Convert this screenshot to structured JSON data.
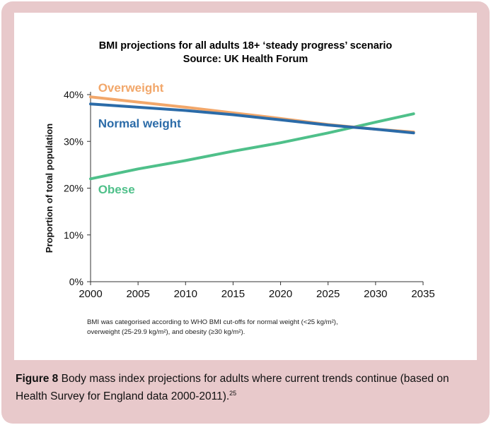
{
  "chart_data": {
    "type": "line",
    "title": "BMI projections for all adults 18+ ‘steady progress’ scenario",
    "subtitle": "Source: UK Health Forum",
    "xlabel": "",
    "ylabel": "Proportion of total population",
    "xlim": [
      2000,
      2035
    ],
    "ylim": [
      0,
      40
    ],
    "x_ticks": [
      "2000",
      "2005",
      "2010",
      "2015",
      "2020",
      "2025",
      "2030",
      "2035"
    ],
    "y_ticks": [
      "0%",
      "10%",
      "20%",
      "30%",
      "40%"
    ],
    "grid": false,
    "series": [
      {
        "name": "Overweight",
        "color": "#f2a76a",
        "x": [
          2000,
          2005,
          2010,
          2015,
          2020,
          2025,
          2030,
          2034
        ],
        "values": [
          39.5,
          38.4,
          37.3,
          36.1,
          34.9,
          33.6,
          32.6,
          32.0
        ]
      },
      {
        "name": "Normal weight",
        "color": "#2b6ba8",
        "x": [
          2000,
          2005,
          2010,
          2015,
          2020,
          2025,
          2030,
          2034
        ],
        "values": [
          38.0,
          37.3,
          36.6,
          35.7,
          34.6,
          33.5,
          32.6,
          31.8
        ]
      },
      {
        "name": "Obese",
        "color": "#4fc08a",
        "x": [
          2000,
          2005,
          2010,
          2015,
          2020,
          2025,
          2030,
          2034
        ],
        "values": [
          22.0,
          24.1,
          25.9,
          27.9,
          29.7,
          31.8,
          34.1,
          35.9
        ]
      }
    ]
  },
  "footnote": {
    "line1": "BMI was categorised according to WHO BMI cut-offs for normal weight (<25 kg/m²),",
    "line2": "overweight (25-29.9 kg/m²), and obesity (≥30 kg/m²)."
  },
  "caption": {
    "label": "Figure 8",
    "text": " Body mass index projections for adults where current trends continue (based on Health Survey for England data 2000-2011).",
    "ref": "25"
  }
}
